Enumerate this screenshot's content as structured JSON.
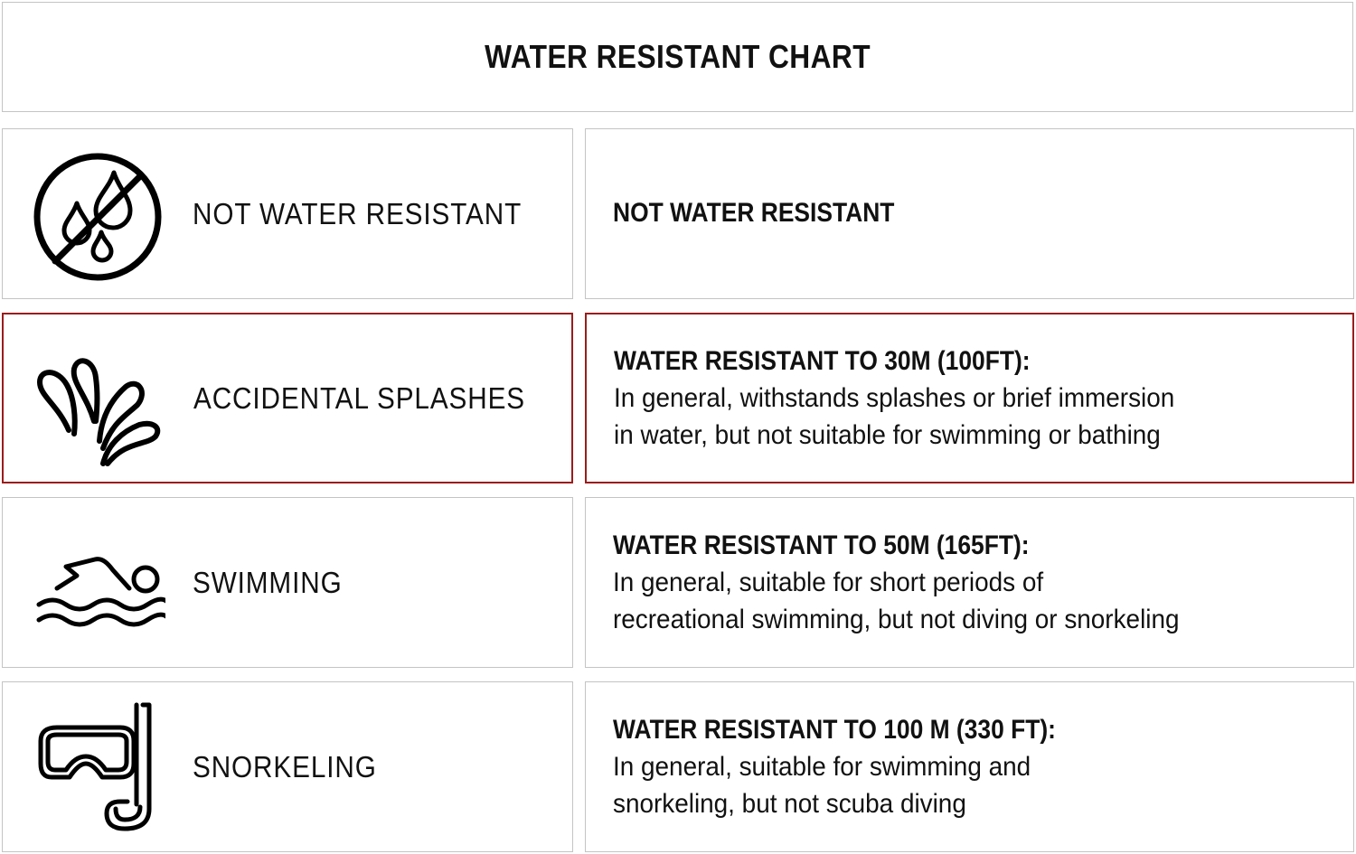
{
  "title": "WATER RESISTANT CHART",
  "accent_color": "#9b1c1c",
  "rows": [
    {
      "icon": "no-water-icon",
      "label": "NOT WATER RESISTANT",
      "heading": "NOT WATER RESISTANT",
      "body": [],
      "highlighted": false
    },
    {
      "icon": "splash-icon",
      "label": "ACCIDENTAL SPLASHES",
      "heading": "WATER RESISTANT TO 30M (100FT):",
      "body": [
        "In general, withstands splashes or brief immersion",
        "in water, but not suitable for swimming or bathing"
      ],
      "highlighted": true
    },
    {
      "icon": "swimmer-icon",
      "label": "SWIMMING",
      "heading": "WATER RESISTANT TO 50M (165FT):",
      "body": [
        "In general, suitable for short periods of",
        "recreational swimming, but not diving or snorkeling"
      ],
      "highlighted": false
    },
    {
      "icon": "snorkel-mask-icon",
      "label": "SNORKELING",
      "heading": "WATER RESISTANT TO 100 M (330 FT):",
      "body": [
        "In general, suitable for swimming and",
        "snorkeling, but not scuba diving"
      ],
      "highlighted": false
    }
  ]
}
